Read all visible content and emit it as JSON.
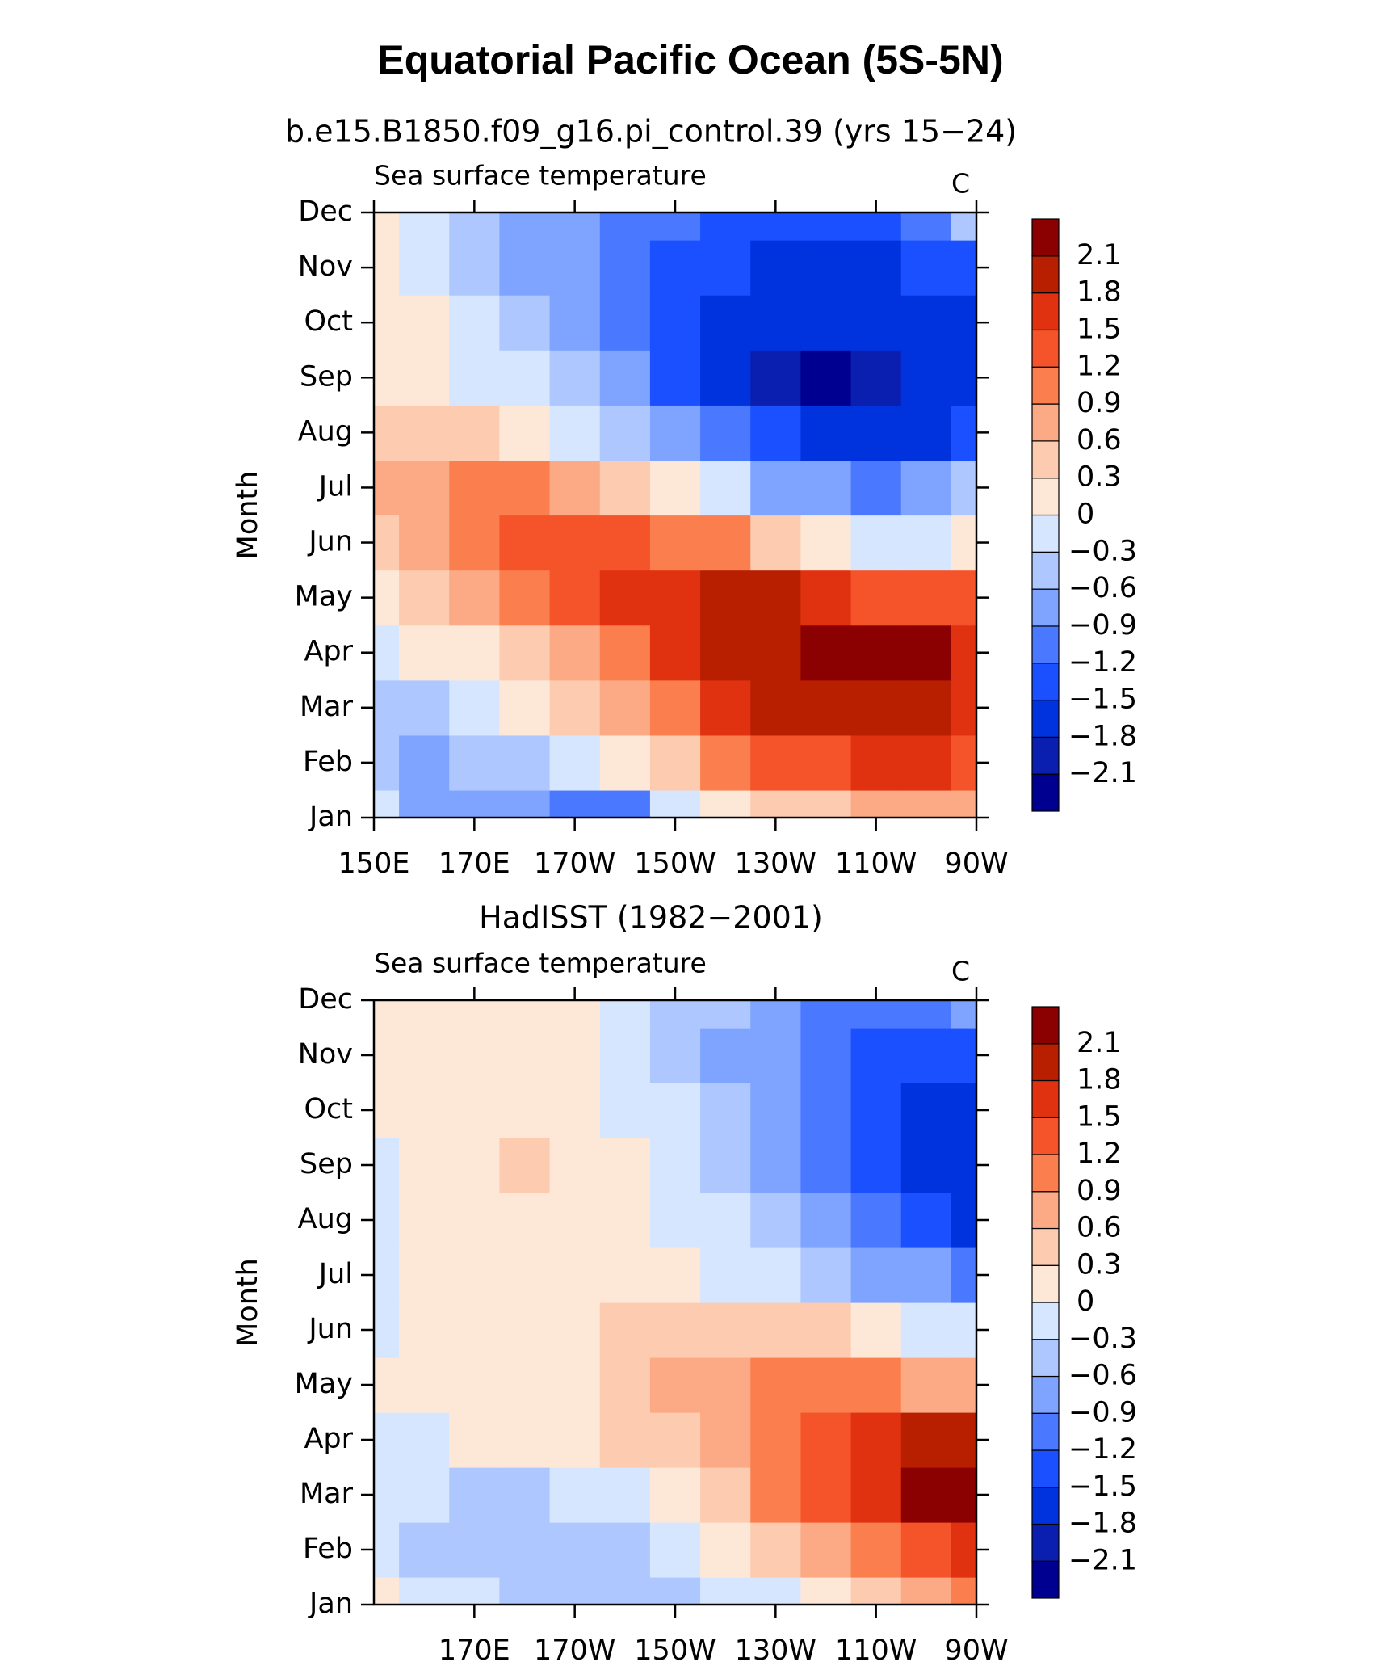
{
  "title": "Equatorial Pacific Ocean (5S-5N)",
  "chart_data": [
    {
      "type": "contour",
      "title": "b.e15.B1850.f09_g16.pi_control.39 (yrs 15−24)",
      "subtitle": "Sea surface temperature",
      "units": "C",
      "ylabel": "Month",
      "x": [
        150,
        160,
        170,
        180,
        190,
        200,
        210,
        220,
        230,
        240,
        250,
        260,
        270
      ],
      "xlim": [
        150,
        270
      ],
      "xticks": [
        {
          "value": 150,
          "label": "150E"
        },
        {
          "value": 170,
          "label": "170E"
        },
        {
          "value": 190,
          "label": "170W"
        },
        {
          "value": 210,
          "label": "150W"
        },
        {
          "value": 230,
          "label": "130W"
        },
        {
          "value": 250,
          "label": "110W"
        },
        {
          "value": 270,
          "label": "90W"
        }
      ],
      "categories": [
        "Jan",
        "Feb",
        "Mar",
        "Apr",
        "May",
        "Jun",
        "Jul",
        "Aug",
        "Sep",
        "Oct",
        "Nov",
        "Dec"
      ],
      "values": [
        [
          -0.2,
          -0.7,
          -0.8,
          -0.9,
          -1.2,
          -1.0,
          -0.3,
          0.1,
          0.3,
          0.5,
          0.6,
          0.6,
          0.6
        ],
        [
          -0.5,
          -0.7,
          -0.6,
          -0.5,
          -0.3,
          0.1,
          0.5,
          0.9,
          1.2,
          1.4,
          1.5,
          1.5,
          1.4
        ],
        [
          -0.5,
          -0.4,
          -0.3,
          0.0,
          0.4,
          0.8,
          1.1,
          1.5,
          1.8,
          1.9,
          2.0,
          1.9,
          1.6
        ],
        [
          -0.2,
          0.0,
          0.2,
          0.5,
          0.8,
          1.1,
          1.5,
          1.8,
          2.0,
          2.2,
          2.2,
          2.1,
          1.7
        ],
        [
          0.2,
          0.4,
          0.7,
          1.0,
          1.3,
          1.6,
          1.7,
          1.8,
          1.8,
          1.6,
          1.4,
          1.3,
          1.3
        ],
        [
          0.5,
          0.7,
          1.0,
          1.2,
          1.3,
          1.3,
          1.1,
          0.9,
          0.5,
          0.2,
          -0.1,
          -0.2,
          0.2
        ],
        [
          0.6,
          0.8,
          0.9,
          0.9,
          0.7,
          0.4,
          0.1,
          -0.3,
          -0.7,
          -0.9,
          -1.0,
          -0.8,
          -0.6
        ],
        [
          0.5,
          0.5,
          0.4,
          0.2,
          -0.1,
          -0.4,
          -0.8,
          -1.2,
          -1.5,
          -1.6,
          -1.6,
          -1.6,
          -1.4
        ],
        [
          0.2,
          0.1,
          -0.1,
          -0.3,
          -0.6,
          -0.9,
          -1.3,
          -1.6,
          -1.9,
          -2.2,
          -1.9,
          -1.7,
          -1.8
        ],
        [
          0.1,
          0.0,
          -0.2,
          -0.5,
          -0.8,
          -1.1,
          -1.4,
          -1.6,
          -1.7,
          -1.8,
          -1.8,
          -1.7,
          -1.6
        ],
        [
          0.1,
          -0.1,
          -0.4,
          -0.7,
          -0.9,
          -1.1,
          -1.3,
          -1.4,
          -1.6,
          -1.6,
          -1.6,
          -1.5,
          -1.3
        ],
        [
          0.1,
          -0.2,
          -0.4,
          -0.7,
          -0.9,
          -1.1,
          -1.1,
          -1.3,
          -1.3,
          -1.3,
          -1.3,
          -1.1,
          -0.5
        ]
      ],
      "levels": [
        {
          "value": -2.1,
          "label": "−2.1"
        },
        {
          "value": -1.8,
          "label": "−1.8"
        },
        {
          "value": -1.5,
          "label": "−1.5"
        },
        {
          "value": -1.2,
          "label": "−1.2"
        },
        {
          "value": -0.9,
          "label": "−0.9"
        },
        {
          "value": -0.6,
          "label": "−0.6"
        },
        {
          "value": -0.3,
          "label": "−0.3"
        },
        0,
        0.3,
        0.6,
        0.9,
        1.2,
        1.5,
        1.8,
        2.1
      ],
      "colors": [
        "#000090",
        "#0a1fb0",
        "#0033dd",
        "#1a50ff",
        "#4a78ff",
        "#7fa4ff",
        "#aec8ff",
        "#d6e6ff",
        "#fde8d8",
        "#fdcbb0",
        "#fcaa85",
        "#fb7f4e",
        "#f5532a",
        "#e03210",
        "#b81f00",
        "#8b0000"
      ]
    },
    {
      "type": "contour",
      "title": "HadISST (1982−2001)",
      "subtitle": "Sea surface temperature",
      "units": "C",
      "ylabel": "Month",
      "x": [
        150,
        160,
        170,
        180,
        190,
        200,
        210,
        220,
        230,
        240,
        250,
        260,
        270
      ],
      "xlim": [
        150,
        270
      ],
      "xticks": [
        {
          "value": 170,
          "label": "170E"
        },
        {
          "value": 190,
          "label": "170W"
        },
        {
          "value": 210,
          "label": "150W"
        },
        {
          "value": 230,
          "label": "130W"
        },
        {
          "value": 250,
          "label": "110W"
        },
        {
          "value": 270,
          "label": "90W"
        }
      ],
      "categories": [
        "Jan",
        "Feb",
        "Mar",
        "Apr",
        "May",
        "Jun",
        "Jul",
        "Aug",
        "Sep",
        "Oct",
        "Nov",
        "Dec"
      ],
      "values": [
        [
          0.0,
          -0.3,
          -0.3,
          -0.4,
          -0.5,
          -0.5,
          -0.4,
          -0.2,
          -0.1,
          0.1,
          0.3,
          0.6,
          1.0
        ],
        [
          -0.3,
          -0.4,
          -0.5,
          -0.5,
          -0.5,
          -0.4,
          -0.1,
          0.1,
          0.4,
          0.7,
          1.0,
          1.3,
          1.6
        ],
        [
          -0.2,
          -0.3,
          -0.4,
          -0.4,
          -0.3,
          -0.1,
          0.2,
          0.5,
          0.9,
          1.3,
          1.7,
          2.1,
          2.2
        ],
        [
          -0.1,
          -0.1,
          0.0,
          0.0,
          0.1,
          0.3,
          0.5,
          0.7,
          1.1,
          1.4,
          1.7,
          2.0,
          1.9
        ],
        [
          0.0,
          0.0,
          0.0,
          0.1,
          0.2,
          0.4,
          0.6,
          0.8,
          0.9,
          1.0,
          0.9,
          0.8,
          0.7
        ],
        [
          -0.1,
          0.0,
          0.1,
          0.1,
          0.2,
          0.4,
          0.5,
          0.5,
          0.5,
          0.3,
          0.1,
          -0.1,
          -0.2
        ],
        [
          -0.1,
          0.0,
          0.1,
          0.1,
          0.1,
          0.2,
          0.1,
          -0.1,
          -0.3,
          -0.5,
          -0.7,
          -0.9,
          -1.1
        ],
        [
          -0.2,
          0.0,
          0.1,
          0.1,
          0.1,
          0.0,
          -0.1,
          -0.3,
          -0.6,
          -0.9,
          -1.2,
          -1.5,
          -1.6
        ],
        [
          -0.1,
          0.1,
          0.2,
          0.3,
          0.1,
          0.0,
          -0.2,
          -0.5,
          -0.8,
          -1.1,
          -1.4,
          -1.7,
          -1.8
        ],
        [
          0.1,
          0.1,
          0.1,
          0.1,
          0.1,
          -0.1,
          -0.3,
          -0.6,
          -0.9,
          -1.2,
          -1.4,
          -1.6,
          -1.7
        ],
        [
          0.1,
          0.1,
          0.1,
          0.1,
          0.0,
          -0.2,
          -0.5,
          -0.7,
          -0.9,
          -1.2,
          -1.4,
          -1.5,
          -1.4
        ],
        [
          0.1,
          0.1,
          0.1,
          0.1,
          0.0,
          -0.2,
          -0.4,
          -0.6,
          -0.8,
          -1.0,
          -1.2,
          -1.2,
          -0.9
        ]
      ],
      "levels": [
        {
          "value": -2.1,
          "label": "−2.1"
        },
        {
          "value": -1.8,
          "label": "−1.8"
        },
        {
          "value": -1.5,
          "label": "−1.5"
        },
        {
          "value": -1.2,
          "label": "−1.2"
        },
        {
          "value": -0.9,
          "label": "−0.9"
        },
        {
          "value": -0.6,
          "label": "−0.6"
        },
        {
          "value": -0.3,
          "label": "−0.3"
        },
        0,
        0.3,
        0.6,
        0.9,
        1.2,
        1.5,
        1.8,
        2.1
      ],
      "colors": [
        "#000090",
        "#0a1fb0",
        "#0033dd",
        "#1a50ff",
        "#4a78ff",
        "#7fa4ff",
        "#aec8ff",
        "#d6e6ff",
        "#fde8d8",
        "#fdcbb0",
        "#fcaa85",
        "#fb7f4e",
        "#f5532a",
        "#e03210",
        "#b81f00",
        "#8b0000"
      ]
    }
  ]
}
